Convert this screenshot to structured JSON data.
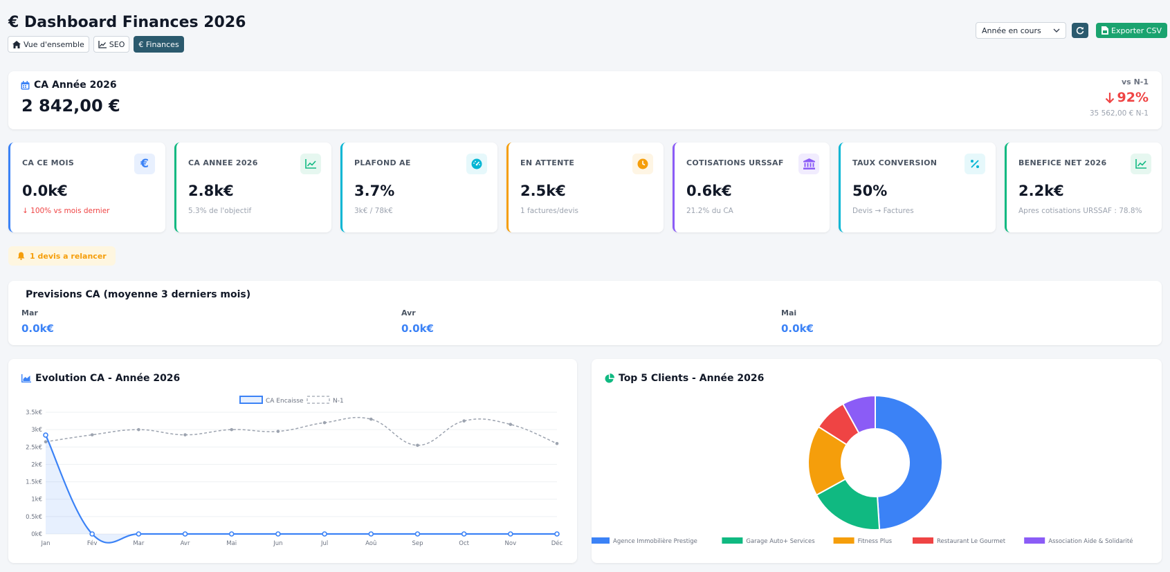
{
  "header": {
    "title": "€ Dashboard Finances 2026",
    "nav": [
      "Vue d'ensemble",
      "SEO",
      "€ Finances"
    ],
    "period_select": "Année en cours",
    "export_label": "Exporter CSV"
  },
  "summary": {
    "label": "CA Année 2026",
    "value": "2 842,00 €",
    "compare_label": "vs N-1",
    "compare_value": "92%",
    "compare_prev": "35 562,00 € N-1"
  },
  "kpis": [
    {
      "label": "CA CE MOIS",
      "value": "0.0k€",
      "sub": "↓ 100% vs mois dernier",
      "accent": "#3b82f6"
    },
    {
      "label": "CA ANNEE 2026",
      "value": "2.8k€",
      "sub": "5.3% de l'objectif",
      "accent": "#10b981"
    },
    {
      "label": "PLAFOND AE",
      "value": "3.7%",
      "sub": "3k€ / 78k€",
      "accent": "#06b6d4"
    },
    {
      "label": "EN ATTENTE",
      "value": "2.5k€",
      "sub": "1 factures/devis",
      "accent": "#f59e0b"
    },
    {
      "label": "COTISATIONS URSSAF",
      "value": "0.6k€",
      "sub": "21.2% du CA",
      "accent": "#8b5cf6"
    },
    {
      "label": "TAUX CONVERSION",
      "value": "50%",
      "sub": "Devis → Factures",
      "accent": "#06b6d4"
    },
    {
      "label": "BENEFICE NET 2026",
      "value": "2.2k€",
      "sub": "Apres cotisations URSSAF : 78.8%",
      "accent": "#10b981"
    }
  ],
  "alert": {
    "text": "1 devis a relancer"
  },
  "forecast": {
    "title": "Previsions CA (moyenne 3 derniers mois)",
    "items": [
      {
        "month": "Mar",
        "value": "0.0k€"
      },
      {
        "month": "Avr",
        "value": "0.0k€"
      },
      {
        "month": "Mai",
        "value": "0.0k€"
      }
    ]
  },
  "evolution": {
    "title": "Evolution CA - Année 2026"
  },
  "clients": {
    "title": "Top 5 Clients - Année 2026"
  },
  "colors": {
    "primary": "#3b82f6",
    "success": "#10b981",
    "warning": "#f59e0b",
    "danger": "#ef4444",
    "purple": "#8b5cf6",
    "dark_teal": "#2b5a6e"
  },
  "chart_data": [
    {
      "type": "line",
      "title": "Evolution CA - Année 2026",
      "x": [
        "Jan",
        "Fév",
        "Mar",
        "Avr",
        "Mai",
        "Jun",
        "Jul",
        "Aoû",
        "Sep",
        "Oct",
        "Nov",
        "Déc"
      ],
      "y_ticks": [
        "0k€",
        "0.5k€",
        "1k€",
        "1.5k€",
        "2k€",
        "2.5k€",
        "3k€",
        "3.5k€"
      ],
      "ylim": [
        0,
        3500
      ],
      "grid": true,
      "legend": "top",
      "series": [
        {
          "name": "CA Encaisse",
          "values": [
            2842,
            0,
            0,
            0,
            0,
            0,
            0,
            0,
            0,
            0,
            0,
            0
          ],
          "color": "#3b82f6",
          "fill": true
        },
        {
          "name": "N-1",
          "values": [
            2650,
            2850,
            3000,
            2850,
            3000,
            2950,
            3200,
            3300,
            2550,
            3250,
            3150,
            2600
          ],
          "color": "#9ca3af",
          "dashed": true
        }
      ]
    },
    {
      "type": "pie",
      "title": "Top 5 Clients - Année 2026",
      "donut": true,
      "legend": "bottom",
      "labels": [
        "Agence Immobilière Prestige",
        "Garage Auto+ Services",
        "Fitness Plus",
        "Restaurant Le Gourmet",
        "Association Aide & Solidarité"
      ],
      "values": [
        49,
        18,
        17,
        8,
        8
      ],
      "colors": [
        "#3b82f6",
        "#10b981",
        "#f59e0b",
        "#ef4444",
        "#8b5cf6"
      ]
    }
  ]
}
